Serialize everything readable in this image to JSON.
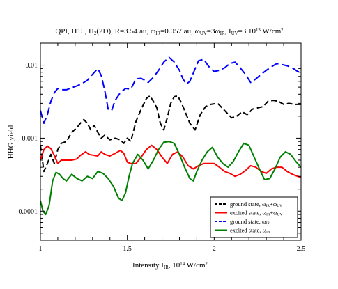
{
  "chart_data": {
    "type": "line",
    "title": {
      "text": "QPI, H15, H2(2D), R=3.54 au, ωIR=0.057 au, ωUV=3ωIR, IUV=3.10^13 W/cm^2",
      "segments": [
        {
          "t": "QPI, H15, H",
          "s": "n"
        },
        {
          "t": "2",
          "s": "sub"
        },
        {
          "t": "(2D), R=3.54 au, ω",
          "s": "n"
        },
        {
          "t": "IR",
          "s": "sub"
        },
        {
          "t": "=0.057 au, ω",
          "s": "n"
        },
        {
          "t": "UV",
          "s": "sub"
        },
        {
          "t": "=3ω",
          "s": "n"
        },
        {
          "t": "IR",
          "s": "sub"
        },
        {
          "t": ", I",
          "s": "n"
        },
        {
          "t": "UV",
          "s": "sub"
        },
        {
          "t": "=3.10",
          "s": "n"
        },
        {
          "t": "13",
          "s": "sup"
        },
        {
          "t": " W/cm",
          "s": "n"
        },
        {
          "t": "2",
          "s": "sup"
        }
      ]
    },
    "xlabel": {
      "text": "Intensity IIR, 10^14 W/cm^2",
      "segments": [
        {
          "t": "Intensity I",
          "s": "n"
        },
        {
          "t": "IR",
          "s": "sub"
        },
        {
          "t": ", 10",
          "s": "n"
        },
        {
          "t": "14",
          "s": "sup"
        },
        {
          "t": " W/cm",
          "s": "n"
        },
        {
          "t": "2",
          "s": "sup"
        }
      ]
    },
    "ylabel": "HHG yield",
    "xlim": [
      1,
      2.5
    ],
    "ylim": [
      4e-05,
      0.02
    ],
    "yscale": "log",
    "xticks": [
      1,
      1.5,
      2,
      2.5
    ],
    "xtick_labels": [
      "1",
      "1.5",
      "2",
      "2.5"
    ],
    "yticks": [
      0.0001,
      0.001,
      0.01
    ],
    "ytick_labels": [
      "0.0001",
      "0.001",
      "0.01"
    ],
    "legend_position": "bottom-right",
    "series": [
      {
        "name": "ground state, ωIR+ωUV",
        "legend_segments": [
          {
            "t": "ground state, ω",
            "s": "n"
          },
          {
            "t": "IR",
            "s": "sub"
          },
          {
            "t": "+ω",
            "s": "n"
          },
          {
            "t": "UV",
            "s": "sub"
          }
        ],
        "color": "#000000",
        "dash": "8,4",
        "x": [
          1.0,
          1.02,
          1.04,
          1.06,
          1.08,
          1.1,
          1.12,
          1.15,
          1.18,
          1.21,
          1.23,
          1.25,
          1.27,
          1.29,
          1.31,
          1.33,
          1.35,
          1.37,
          1.4,
          1.43,
          1.46,
          1.48,
          1.5,
          1.52,
          1.55,
          1.58,
          1.61,
          1.63,
          1.65,
          1.67,
          1.69,
          1.71,
          1.73,
          1.75,
          1.77,
          1.79,
          1.81,
          1.83,
          1.86,
          1.89,
          1.92,
          1.95,
          1.98,
          2.02,
          2.06,
          2.1,
          2.13,
          2.16,
          2.19,
          2.22,
          2.25,
          2.28,
          2.31,
          2.34,
          2.37,
          2.4,
          2.43,
          2.46,
          2.5
        ],
        "y": [
          0.0008,
          0.00035,
          0.00045,
          0.0006,
          0.00045,
          0.0007,
          0.00085,
          0.0009,
          0.0012,
          0.0014,
          0.0016,
          0.0018,
          0.0016,
          0.0013,
          0.0015,
          0.0012,
          0.001,
          0.0011,
          0.00095,
          0.001,
          0.00095,
          0.00085,
          0.001,
          0.0009,
          0.0017,
          0.0025,
          0.0035,
          0.0038,
          0.0032,
          0.0026,
          0.0016,
          0.0013,
          0.0019,
          0.003,
          0.0037,
          0.0038,
          0.0031,
          0.0024,
          0.0016,
          0.0013,
          0.0021,
          0.0027,
          0.0029,
          0.003,
          0.0024,
          0.0019,
          0.002,
          0.0023,
          0.0021,
          0.0025,
          0.0026,
          0.0027,
          0.0032,
          0.0033,
          0.0032,
          0.0029,
          0.003,
          0.0029,
          0.0029
        ]
      },
      {
        "name": "excited state, ωIR+ωUV",
        "legend_segments": [
          {
            "t": "excited state, ω",
            "s": "n"
          },
          {
            "t": "IR",
            "s": "sub"
          },
          {
            "t": "+ω",
            "s": "n"
          },
          {
            "t": "UV",
            "s": "sub"
          }
        ],
        "color": "#ff0000",
        "dash": "",
        "x": [
          1.0,
          1.02,
          1.04,
          1.06,
          1.08,
          1.1,
          1.12,
          1.15,
          1.18,
          1.21,
          1.23,
          1.26,
          1.28,
          1.31,
          1.33,
          1.35,
          1.37,
          1.4,
          1.43,
          1.46,
          1.48,
          1.5,
          1.52,
          1.55,
          1.58,
          1.61,
          1.64,
          1.67,
          1.7,
          1.73,
          1.76,
          1.79,
          1.82,
          1.85,
          1.88,
          1.91,
          1.94,
          1.97,
          2.0,
          2.03,
          2.06,
          2.09,
          2.12,
          2.15,
          2.18,
          2.21,
          2.24,
          2.27,
          2.3,
          2.33,
          2.36,
          2.39,
          2.42,
          2.45,
          2.48,
          2.5
        ],
        "y": [
          0.0005,
          0.0007,
          0.00078,
          0.00072,
          0.00058,
          0.00045,
          0.0005,
          0.0005,
          0.0005,
          0.00052,
          0.00058,
          0.00065,
          0.0006,
          0.00058,
          0.00057,
          0.00065,
          0.0006,
          0.00057,
          0.00062,
          0.00068,
          0.00062,
          0.00047,
          0.00045,
          0.00045,
          0.00055,
          0.0007,
          0.0008,
          0.0007,
          0.00055,
          0.00045,
          0.0006,
          0.00065,
          0.00055,
          0.00042,
          0.00038,
          0.00042,
          0.00045,
          0.00045,
          0.00045,
          0.0004,
          0.00035,
          0.00033,
          0.0003,
          0.00032,
          0.00036,
          0.00042,
          0.0004,
          0.00035,
          0.00033,
          0.00038,
          0.0004,
          0.0004,
          0.00035,
          0.00032,
          0.0003,
          0.00029
        ]
      },
      {
        "name": "ground state, ωIR",
        "legend_segments": [
          {
            "t": "ground state, ω",
            "s": "n"
          },
          {
            "t": "IR",
            "s": "sub"
          }
        ],
        "color": "#0000ff",
        "dash": "11,5",
        "x": [
          1.0,
          1.02,
          1.04,
          1.06,
          1.08,
          1.1,
          1.12,
          1.15,
          1.18,
          1.21,
          1.24,
          1.27,
          1.3,
          1.33,
          1.35,
          1.37,
          1.39,
          1.41,
          1.43,
          1.46,
          1.49,
          1.52,
          1.55,
          1.58,
          1.6,
          1.62,
          1.65,
          1.68,
          1.71,
          1.74,
          1.77,
          1.8,
          1.82,
          1.84,
          1.86,
          1.88,
          1.91,
          1.94,
          1.97,
          2.0,
          2.03,
          2.06,
          2.09,
          2.12,
          2.15,
          2.18,
          2.21,
          2.24,
          2.27,
          2.3,
          2.33,
          2.36,
          2.39,
          2.42,
          2.45,
          2.48,
          2.5
        ],
        "y": [
          0.0024,
          0.0016,
          0.0021,
          0.0032,
          0.0042,
          0.0048,
          0.0046,
          0.0046,
          0.0049,
          0.0052,
          0.0056,
          0.0062,
          0.0075,
          0.009,
          0.0072,
          0.0045,
          0.0025,
          0.0024,
          0.0033,
          0.0042,
          0.0048,
          0.0047,
          0.0065,
          0.0066,
          0.0062,
          0.0058,
          0.0068,
          0.0085,
          0.011,
          0.0128,
          0.011,
          0.0085,
          0.0065,
          0.0055,
          0.006,
          0.0078,
          0.0115,
          0.012,
          0.0095,
          0.0082,
          0.0085,
          0.0092,
          0.0105,
          0.011,
          0.0092,
          0.0075,
          0.0058,
          0.0065,
          0.0075,
          0.0085,
          0.0095,
          0.0105,
          0.0102,
          0.0098,
          0.0092,
          0.0082,
          0.008
        ]
      },
      {
        "name": "excited state, ωIR",
        "legend_segments": [
          {
            "t": "excited state, ω",
            "s": "n"
          },
          {
            "t": "IR",
            "s": "sub"
          }
        ],
        "color": "#008000",
        "dash": "",
        "x": [
          1.0,
          1.015,
          1.03,
          1.05,
          1.07,
          1.09,
          1.11,
          1.13,
          1.15,
          1.18,
          1.21,
          1.24,
          1.27,
          1.3,
          1.33,
          1.36,
          1.39,
          1.42,
          1.45,
          1.47,
          1.49,
          1.51,
          1.53,
          1.56,
          1.59,
          1.62,
          1.65,
          1.68,
          1.71,
          1.74,
          1.77,
          1.8,
          1.83,
          1.86,
          1.88,
          1.9,
          1.93,
          1.96,
          1.99,
          2.02,
          2.05,
          2.08,
          2.11,
          2.14,
          2.17,
          2.2,
          2.23,
          2.26,
          2.29,
          2.32,
          2.35,
          2.38,
          2.41,
          2.44,
          2.47,
          2.5
        ],
        "y": [
          0.00014,
          0.0001,
          9e-05,
          0.00012,
          0.00026,
          0.00034,
          0.00032,
          0.00028,
          0.00026,
          0.00032,
          0.00028,
          0.00026,
          0.0003,
          0.00028,
          0.00035,
          0.00033,
          0.00028,
          0.00022,
          0.00015,
          0.00014,
          0.00018,
          0.0003,
          0.00045,
          0.0006,
          0.0005,
          0.00038,
          0.0005,
          0.0007,
          0.00088,
          0.0009,
          0.00085,
          0.0006,
          0.0004,
          0.00028,
          0.00026,
          0.00035,
          0.0005,
          0.00065,
          0.00075,
          0.00055,
          0.00045,
          0.0004,
          0.00048,
          0.00065,
          0.00085,
          0.0008,
          0.00055,
          0.00038,
          0.00027,
          0.00028,
          0.00038,
          0.00055,
          0.00065,
          0.0006,
          0.00048,
          0.0004
        ]
      }
    ]
  }
}
